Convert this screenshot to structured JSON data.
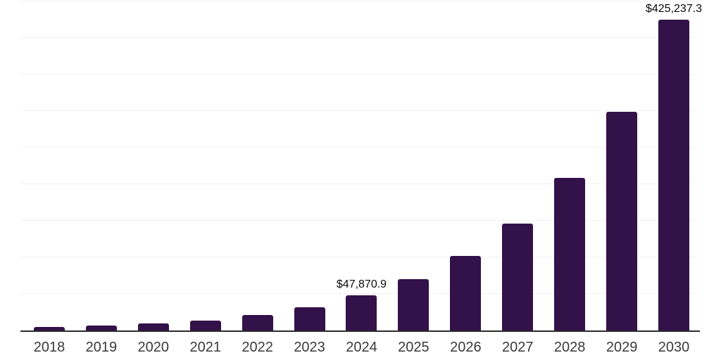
{
  "chart": {
    "colors": {
      "background": "#ffffff",
      "bar": "#331149",
      "axis": "#2b2b2b",
      "gridline": "#f1f1f1",
      "tick_label": "#3a3a3a",
      "value_label": "#0a0a0a"
    }
  },
  "chart_data": {
    "type": "bar",
    "title": "",
    "xlabel": "",
    "ylabel": "",
    "categories": [
      "2018",
      "2019",
      "2020",
      "2021",
      "2022",
      "2023",
      "2024",
      "2025",
      "2026",
      "2027",
      "2028",
      "2029",
      "2030"
    ],
    "values": [
      4800,
      6800,
      9800,
      13500,
      21000,
      31500,
      47870.9,
      70000,
      102000,
      146000,
      209000,
      299000,
      425237.3
    ],
    "data_labels": [
      null,
      null,
      null,
      null,
      null,
      null,
      "$47,870.9",
      null,
      null,
      null,
      null,
      null,
      "$425,237.3"
    ],
    "ylim": [
      0,
      450000
    ],
    "gridline_step": 50000,
    "grid": "horizontal-only",
    "y_axis_tick_labels": "none",
    "legend": "none"
  }
}
